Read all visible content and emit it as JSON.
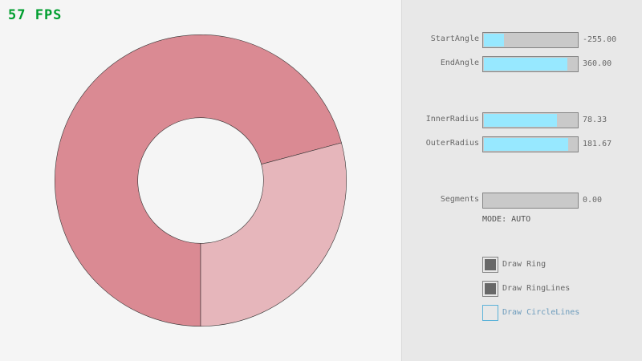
{
  "fps": "57 FPS",
  "ring": {
    "start_angle": -255,
    "end_angle": 360,
    "inner_radius": 78.33,
    "outer_radius": 181.67,
    "colors": {
      "overlap": "#da8a93",
      "single": "#e6b6bb",
      "lines": "#333333"
    }
  },
  "controls": {
    "sliders": [
      {
        "label": "StartAngle",
        "value": "-255.00",
        "fraction": 0.217
      },
      {
        "label": "EndAngle",
        "value": "360.00",
        "fraction": 0.9
      },
      {
        "label": "InnerRadius",
        "value": "78.33",
        "fraction": 0.783
      },
      {
        "label": "OuterRadius",
        "value": "181.67",
        "fraction": 0.908
      },
      {
        "label": "Segments",
        "value": "0.00",
        "fraction": 0
      }
    ],
    "mode": "MODE: AUTO",
    "checkboxes": [
      {
        "label": "Draw Ring",
        "checked": true
      },
      {
        "label": "Draw RingLines",
        "checked": true
      },
      {
        "label": "Draw CircleLines",
        "checked": false
      }
    ]
  }
}
